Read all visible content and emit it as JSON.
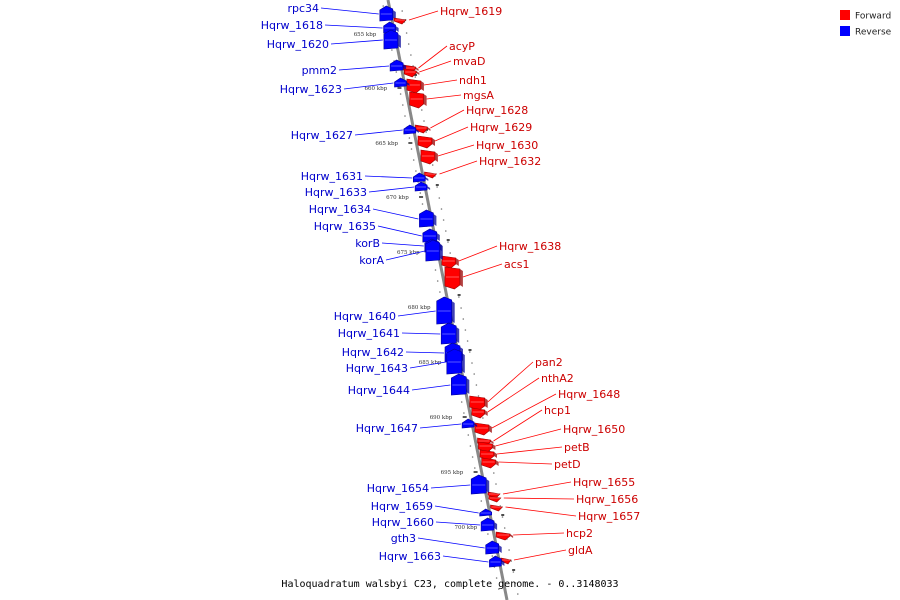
{
  "legend": {
    "forward": {
      "label": "Forward",
      "color": "#ff0000"
    },
    "reverse": {
      "label": "Reverse",
      "color": "#0000ff"
    }
  },
  "caption": "Haloquadratum walsbyi C23, complete genome. - 0..3148033",
  "ticks": [
    {
      "label": "655 kbp"
    },
    {
      "label": "660 kbp"
    },
    {
      "label": "665 kbp"
    },
    {
      "label": "670 kbp"
    },
    {
      "label": "675 kbp"
    },
    {
      "label": "680 kbp"
    },
    {
      "label": "685 kbp"
    },
    {
      "label": "690 kbp"
    },
    {
      "label": "695 kbp"
    },
    {
      "label": "700 kbp"
    }
  ],
  "genes": [
    {
      "name": "rpc34",
      "strand": "reverse"
    },
    {
      "name": "Hqrw_1618",
      "strand": "reverse"
    },
    {
      "name": "Hqrw_1619",
      "strand": "forward"
    },
    {
      "name": "Hqrw_1620",
      "strand": "reverse"
    },
    {
      "name": "acyP",
      "strand": "forward"
    },
    {
      "name": "pmm2",
      "strand": "reverse"
    },
    {
      "name": "mvaD",
      "strand": "forward"
    },
    {
      "name": "ndh1",
      "strand": "forward"
    },
    {
      "name": "Hqrw_1623",
      "strand": "reverse"
    },
    {
      "name": "mgsA",
      "strand": "forward"
    },
    {
      "name": "Hqrw_1628",
      "strand": "forward"
    },
    {
      "name": "Hqrw_1627",
      "strand": "reverse"
    },
    {
      "name": "Hqrw_1629",
      "strand": "forward"
    },
    {
      "name": "Hqrw_1630",
      "strand": "forward"
    },
    {
      "name": "Hqrw_1632",
      "strand": "forward"
    },
    {
      "name": "Hqrw_1631",
      "strand": "reverse"
    },
    {
      "name": "Hqrw_1633",
      "strand": "reverse"
    },
    {
      "name": "Hqrw_1634",
      "strand": "reverse"
    },
    {
      "name": "Hqrw_1635",
      "strand": "reverse"
    },
    {
      "name": "korB",
      "strand": "reverse"
    },
    {
      "name": "Hqrw_1638",
      "strand": "forward"
    },
    {
      "name": "korA",
      "strand": "reverse"
    },
    {
      "name": "acs1",
      "strand": "forward"
    },
    {
      "name": "Hqrw_1640",
      "strand": "reverse"
    },
    {
      "name": "Hqrw_1641",
      "strand": "reverse"
    },
    {
      "name": "Hqrw_1642",
      "strand": "reverse"
    },
    {
      "name": "pan2",
      "strand": "forward"
    },
    {
      "name": "Hqrw_1643",
      "strand": "reverse"
    },
    {
      "name": "nthA2",
      "strand": "forward"
    },
    {
      "name": "Hqrw_1644",
      "strand": "reverse"
    },
    {
      "name": "Hqrw_1648",
      "strand": "forward"
    },
    {
      "name": "hcp1",
      "strand": "forward"
    },
    {
      "name": "Hqrw_1647",
      "strand": "reverse"
    },
    {
      "name": "Hqrw_1650",
      "strand": "forward"
    },
    {
      "name": "petB",
      "strand": "forward"
    },
    {
      "name": "petD",
      "strand": "forward"
    },
    {
      "name": "Hqrw_1655",
      "strand": "forward"
    },
    {
      "name": "Hqrw_1654",
      "strand": "reverse"
    },
    {
      "name": "Hqrw_1656",
      "strand": "forward"
    },
    {
      "name": "Hqrw_1659",
      "strand": "reverse"
    },
    {
      "name": "Hqrw_1657",
      "strand": "forward"
    },
    {
      "name": "Hqrw_1660",
      "strand": "reverse"
    },
    {
      "name": "hcp2",
      "strand": "forward"
    },
    {
      "name": "gth3",
      "strand": "reverse"
    },
    {
      "name": "gldA",
      "strand": "forward"
    },
    {
      "name": "Hqrw_1663",
      "strand": "reverse"
    }
  ]
}
